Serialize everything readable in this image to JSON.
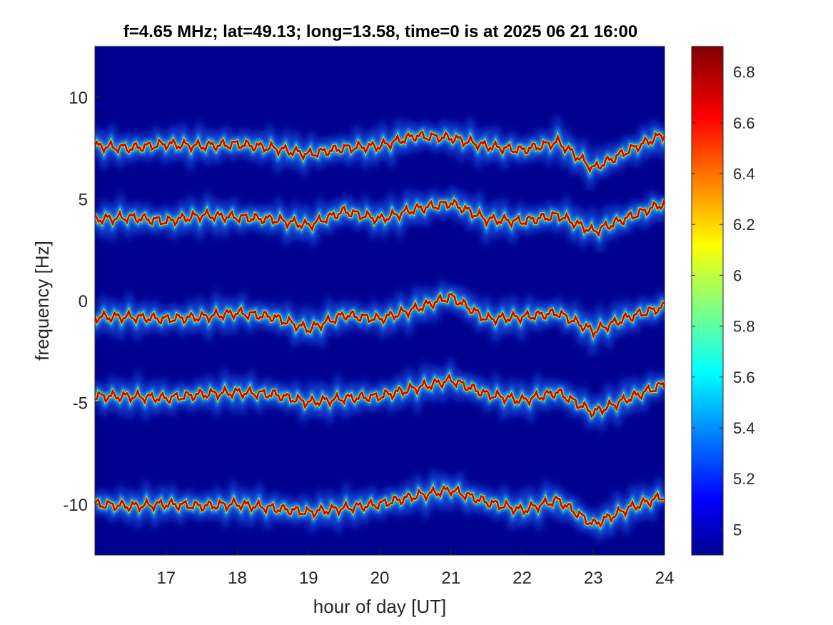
{
  "chart_data": {
    "type": "heatmap",
    "title": "f=4.65 MHz;  lat=49.13; long=13.58, time=0 is at 2025 06 21 16:00",
    "xlabel": "hour of day [UT]",
    "ylabel": "frequency [Hz]",
    "xlim": [
      16,
      24
    ],
    "ylim": [
      -12.5,
      12.5
    ],
    "xticks": [
      "17",
      "18",
      "19",
      "20",
      "21",
      "22",
      "23",
      "24"
    ],
    "yticks": [
      "10",
      "5",
      "0",
      "-5",
      "-10"
    ],
    "colorbar": {
      "ticks": [
        "6.8",
        "6.6",
        "6.4",
        "6.2",
        "6",
        "5.8",
        "5.6",
        "5.4",
        "5.2",
        "5"
      ],
      "range": [
        4.9,
        6.9
      ],
      "colormap": "jet"
    },
    "background_color": "#00008f",
    "grid": false,
    "ridges": [
      {
        "center": 10,
        "x": [
          16.0,
          16.5,
          17.0,
          17.5,
          18.0,
          18.5,
          19.0,
          19.5,
          20.0,
          20.5,
          21.0,
          21.5,
          22.0,
          22.5,
          23.0,
          23.5,
          24.0
        ],
        "y": [
          7.6,
          7.5,
          7.7,
          7.6,
          7.7,
          7.5,
          7.2,
          7.5,
          7.6,
          8.1,
          8.0,
          7.6,
          7.4,
          7.8,
          6.5,
          7.4,
          8.2
        ]
      },
      {
        "center": 5,
        "x": [
          16.0,
          16.5,
          17.0,
          17.5,
          18.0,
          18.5,
          19.0,
          19.5,
          20.0,
          20.5,
          21.0,
          21.5,
          22.0,
          22.5,
          23.0,
          23.5,
          24.0
        ],
        "y": [
          4.0,
          4.1,
          3.9,
          4.2,
          4.1,
          4.0,
          3.7,
          4.4,
          4.0,
          4.5,
          4.8,
          4.0,
          3.9,
          4.2,
          3.4,
          4.1,
          4.8
        ]
      },
      {
        "center": 0,
        "x": [
          16.0,
          16.5,
          17.0,
          17.5,
          18.0,
          18.5,
          19.0,
          19.5,
          20.0,
          20.5,
          21.0,
          21.5,
          22.0,
          22.5,
          23.0,
          23.5,
          24.0
        ],
        "y": [
          -0.8,
          -0.8,
          -0.9,
          -0.8,
          -0.6,
          -0.8,
          -1.4,
          -0.7,
          -0.9,
          -0.4,
          0.2,
          -0.9,
          -0.8,
          -0.6,
          -1.5,
          -0.8,
          -0.3
        ]
      },
      {
        "center": -5,
        "x": [
          16.0,
          16.5,
          17.0,
          17.5,
          18.0,
          18.5,
          19.0,
          19.5,
          20.0,
          20.5,
          21.0,
          21.5,
          22.0,
          22.5,
          23.0,
          23.5,
          24.0
        ],
        "y": [
          -4.7,
          -4.7,
          -4.8,
          -4.6,
          -4.5,
          -4.6,
          -5.0,
          -4.8,
          -4.7,
          -4.3,
          -3.9,
          -4.6,
          -4.9,
          -4.5,
          -5.5,
          -4.8,
          -4.1
        ]
      },
      {
        "center": -10,
        "x": [
          16.0,
          16.5,
          17.0,
          17.5,
          18.0,
          18.5,
          19.0,
          19.5,
          20.0,
          20.5,
          21.0,
          21.5,
          22.0,
          22.5,
          23.0,
          23.5,
          24.0
        ],
        "y": [
          -10.0,
          -10.1,
          -10.0,
          -10.1,
          -10.0,
          -10.2,
          -10.4,
          -10.2,
          -10.0,
          -9.6,
          -9.3,
          -9.9,
          -10.3,
          -9.8,
          -11.0,
          -10.2,
          -9.6
        ]
      }
    ]
  }
}
